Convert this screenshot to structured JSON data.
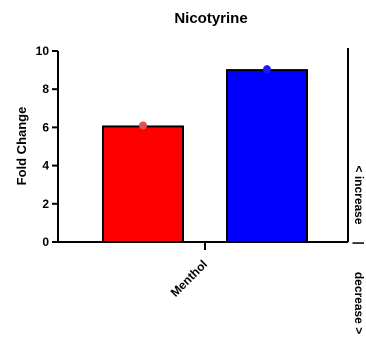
{
  "chart_data": {
    "type": "bar",
    "title": "Nicotyrine",
    "ylabel": "Fold Change",
    "xlabel": "",
    "category_label": "Menthol",
    "ylim": [
      0,
      10
    ],
    "y_ticks": [
      "0",
      "2",
      "4",
      "6",
      "8",
      "10"
    ],
    "series": [
      {
        "color": "#ff0000",
        "dot_color": "#e05050",
        "value": 6.05,
        "point": 6.1
      },
      {
        "color": "#0000ff",
        "dot_color": "#1a1aff",
        "value": 9.0,
        "point": 9.05
      }
    ],
    "right_labels": {
      "increase": "< increase",
      "separator": "|",
      "decrease": "decrease >"
    },
    "grid": false
  }
}
